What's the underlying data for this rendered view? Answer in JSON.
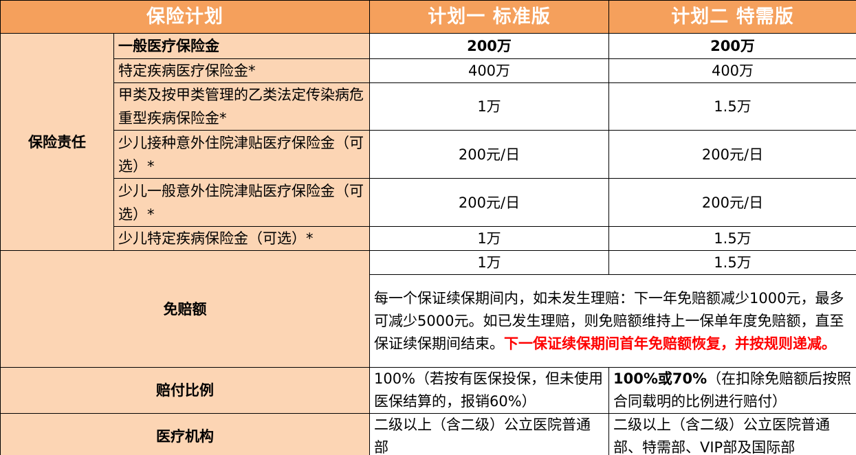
{
  "table": {
    "header": [
      "保险计划",
      "计划一 标准版",
      "计划二 特需版"
    ],
    "coverage": {
      "label": "保险责任",
      "items": [
        {
          "name": "一般医疗保险金",
          "plan1": "200万",
          "plan2": "200万"
        },
        {
          "name": "特定疾病医疗保险金*",
          "plan1": "400万",
          "plan2": "400万"
        },
        {
          "name": "甲类及按甲类管理的乙类法定传染病危重型疾病保险金*",
          "plan1": "1万",
          "plan2": "1.5万"
        },
        {
          "name": "少儿接种意外住院津贴医疗保险金（可选）*",
          "plan1": "200元/日",
          "plan2": "200元/日"
        },
        {
          "name": "少儿一般意外住院津贴医疗保险金（可选）*",
          "plan1": "200元/日",
          "plan2": "200元/日"
        },
        {
          "name": "少儿特定疾病保险金（可选）*",
          "plan1": "1万",
          "plan2": "1.5万"
        }
      ]
    },
    "deductible": {
      "label": "免赔额",
      "plan1": "1万",
      "plan2": "1.5万",
      "note": "每一个保证续保期间内，如未发生理赔：下一年免赔额减少1000元，最多可减少5000元。如已发生理赔，则免赔额维持上一保单年度免赔额，直至保证续保期间结束。",
      "note_highlight": "下一保证续保期间首年免赔额恢复，并按规则递减。"
    },
    "ratio": {
      "label": "赔付比例",
      "plan1": "100%（若按有医保投保，但未使用医保结算的，报销60%）",
      "plan2_bold": "100%或70%",
      "plan2": "（在扣除免赔额后按照合同载明的比例进行赔付）"
    },
    "institution": {
      "label": "医疗机构",
      "plan1": "二级以上（含二级）公立医院普通部",
      "plan2": "二级以上（含二级）公立医院普通部、特需部、VIP部及国际部"
    }
  }
}
